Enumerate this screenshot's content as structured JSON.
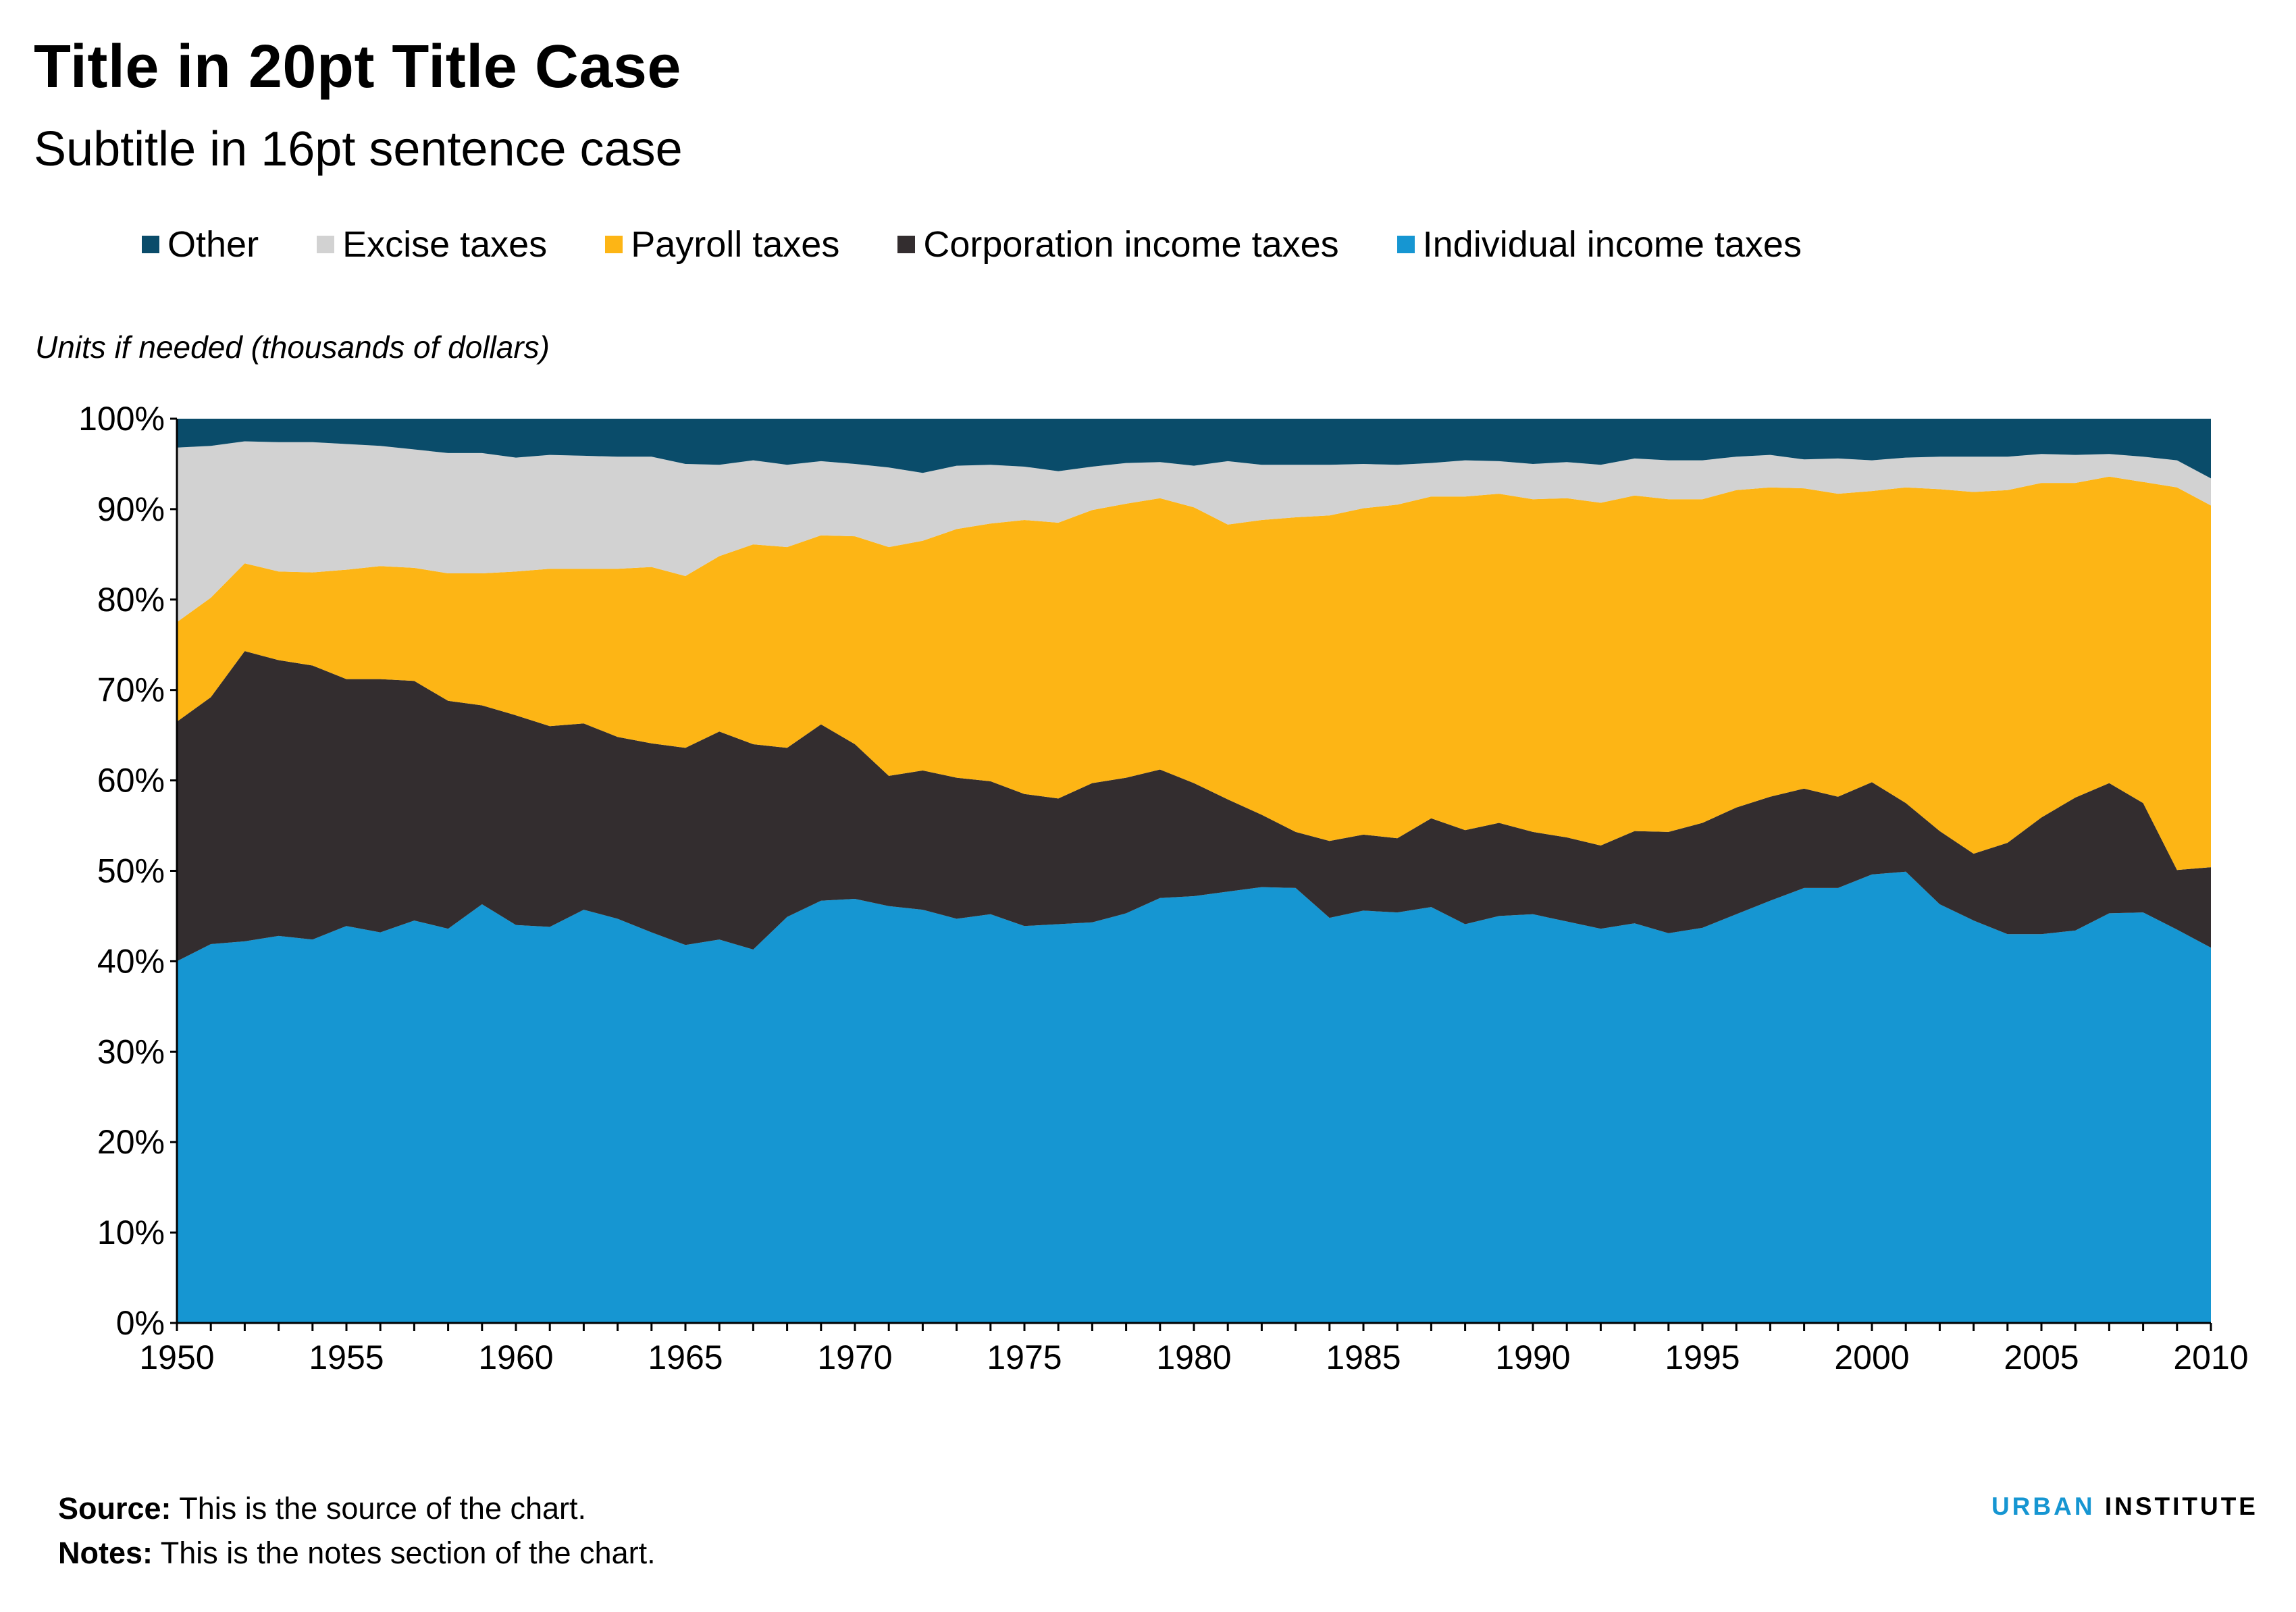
{
  "title": "Title in 20pt Title Case",
  "subtitle": "Subtitle in 16pt sentence case",
  "units": "Units if needed (thousands of dollars)",
  "legend": [
    {
      "label": "Other",
      "color": "#0a4c6a"
    },
    {
      "label": "Excise taxes",
      "color": "#d2d2d2"
    },
    {
      "label": "Payroll taxes",
      "color": "#fdb515"
    },
    {
      "label": "Corporation income taxes",
      "color": "#332d2f"
    },
    {
      "label": "Individual income taxes",
      "color": "#1696d2"
    }
  ],
  "footer": {
    "source_label": "Source:",
    "source_text": "This is the source of the chart.",
    "notes_label": "Notes:",
    "notes_text": "This is the notes section of the chart."
  },
  "logo": {
    "part1": "URBAN",
    "part2": "INSTITUTE"
  },
  "chart_data": {
    "type": "area",
    "stacked": true,
    "title": "Title in 20pt Title Case",
    "subtitle": "Subtitle in 16pt sentence case",
    "ylabel": "Units if needed (thousands of dollars)",
    "xlim": [
      1950,
      2010
    ],
    "ylim": [
      0,
      100
    ],
    "y_ticks": [
      "0%",
      "10%",
      "20%",
      "30%",
      "40%",
      "50%",
      "60%",
      "70%",
      "80%",
      "90%",
      "100%"
    ],
    "x_ticks": [
      "1950",
      "1955",
      "1960",
      "1965",
      "1970",
      "1975",
      "1980",
      "1985",
      "1990",
      "1995",
      "2000",
      "2005",
      "2010"
    ],
    "legend_position": "top",
    "grid": false,
    "x": [
      1950,
      1951,
      1952,
      1953,
      1954,
      1955,
      1956,
      1957,
      1958,
      1959,
      1960,
      1961,
      1962,
      1963,
      1964,
      1965,
      1966,
      1967,
      1968,
      1969,
      1970,
      1971,
      1972,
      1973,
      1974,
      1975,
      1976,
      1977,
      1978,
      1979,
      1980,
      1981,
      1982,
      1983,
      1984,
      1985,
      1986,
      1987,
      1988,
      1989,
      1990,
      1991,
      1992,
      1993,
      1994,
      1995,
      1996,
      1997,
      1998,
      1999,
      2000,
      2001,
      2002,
      2003,
      2004,
      2005,
      2006,
      2007,
      2008,
      2009,
      2010
    ],
    "series": [
      {
        "name": "Individual income taxes",
        "color": "#1696d2",
        "values": [
          40.0,
          41.9,
          42.2,
          42.8,
          42.4,
          43.9,
          43.2,
          44.5,
          43.6,
          46.3,
          44.0,
          43.8,
          45.7,
          44.7,
          43.2,
          41.8,
          42.4,
          41.3,
          44.9,
          46.7,
          46.9,
          46.1,
          45.7,
          44.7,
          45.2,
          43.9,
          44.1,
          44.3,
          45.3,
          47.0,
          47.2,
          47.7,
          48.2,
          48.1,
          44.8,
          45.6,
          45.4,
          46.0,
          44.1,
          45.0,
          45.2,
          44.4,
          43.6,
          44.2,
          43.1,
          43.7,
          45.2,
          46.7,
          48.1,
          48.1,
          49.6,
          49.9,
          46.3,
          44.5,
          43.0,
          43.0,
          43.4,
          45.3,
          45.4,
          43.5,
          41.5
        ]
      },
      {
        "name": "Corporation income taxes",
        "color": "#332d2f",
        "values": [
          26.5,
          27.3,
          32.1,
          30.5,
          30.3,
          27.3,
          28.0,
          26.5,
          25.2,
          22.0,
          23.2,
          22.2,
          20.6,
          20.1,
          20.9,
          21.8,
          23.0,
          22.7,
          18.7,
          19.5,
          17.1,
          14.4,
          15.4,
          15.6,
          14.7,
          14.6,
          13.9,
          15.4,
          15.0,
          14.2,
          12.5,
          10.2,
          8.0,
          6.2,
          8.5,
          8.4,
          8.2,
          9.8,
          10.4,
          10.3,
          9.1,
          9.3,
          9.2,
          10.2,
          11.2,
          11.6,
          11.8,
          11.5,
          11.0,
          10.1,
          10.2,
          7.6,
          8.1,
          7.4,
          10.1,
          12.9,
          14.7,
          14.4,
          12.1,
          6.6,
          8.9
        ]
      },
      {
        "name": "Payroll taxes",
        "color": "#fdb515",
        "values": [
          11.0,
          11.0,
          9.7,
          9.8,
          10.3,
          12.1,
          12.5,
          12.5,
          14.1,
          14.6,
          15.9,
          17.4,
          17.1,
          18.6,
          19.5,
          19.0,
          19.4,
          22.1,
          22.2,
          20.9,
          23.0,
          25.3,
          25.4,
          27.5,
          28.5,
          30.3,
          30.5,
          30.2,
          30.3,
          30.0,
          30.5,
          30.4,
          32.6,
          34.8,
          36.0,
          36.1,
          36.9,
          35.6,
          36.9,
          36.4,
          36.8,
          37.5,
          37.9,
          37.1,
          36.8,
          35.8,
          35.1,
          34.2,
          33.2,
          33.5,
          32.2,
          34.9,
          37.8,
          40.0,
          39.0,
          37.0,
          34.8,
          33.9,
          35.5,
          42.3,
          40.0
        ]
      },
      {
        "name": "Excise taxes",
        "color": "#d2d2d2",
        "values": [
          19.3,
          16.8,
          13.5,
          14.3,
          14.4,
          13.9,
          13.3,
          13.1,
          13.3,
          13.3,
          12.6,
          12.6,
          12.5,
          12.4,
          12.2,
          12.4,
          10.1,
          9.3,
          9.1,
          8.2,
          8.0,
          8.8,
          7.5,
          7.0,
          6.5,
          5.9,
          5.7,
          4.8,
          4.5,
          4.0,
          4.6,
          7.0,
          6.1,
          5.8,
          5.6,
          4.9,
          4.4,
          3.7,
          4.0,
          3.6,
          3.9,
          4.0,
          4.2,
          4.1,
          4.3,
          4.3,
          3.7,
          3.6,
          3.2,
          3.9,
          3.4,
          3.3,
          3.6,
          3.9,
          3.7,
          3.2,
          3.1,
          2.5,
          2.8,
          3.0,
          3.0
        ]
      },
      {
        "name": "Other",
        "color": "#0a4c6a",
        "values": [
          3.2,
          3.0,
          2.5,
          2.6,
          2.6,
          2.8,
          3.0,
          3.4,
          3.8,
          3.8,
          4.3,
          4.0,
          4.1,
          4.2,
          4.2,
          5.0,
          5.1,
          4.6,
          5.1,
          4.7,
          5.0,
          5.4,
          6.0,
          5.2,
          5.1,
          5.3,
          5.8,
          5.3,
          4.9,
          4.8,
          5.2,
          4.7,
          5.1,
          5.1,
          5.1,
          5.0,
          5.1,
          4.9,
          4.6,
          4.7,
          5.0,
          4.8,
          5.1,
          4.4,
          4.6,
          4.6,
          4.2,
          4.0,
          4.5,
          4.4,
          4.6,
          4.3,
          4.2,
          4.2,
          4.2,
          3.9,
          4.0,
          3.9,
          4.2,
          4.6,
          6.6
        ]
      }
    ]
  }
}
